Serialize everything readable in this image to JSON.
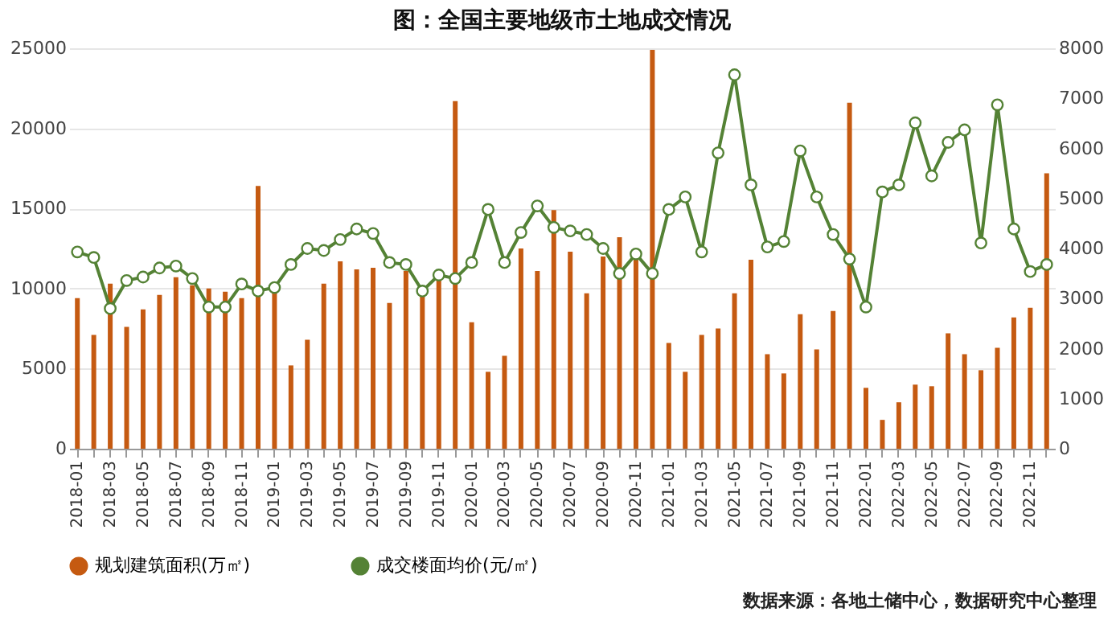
{
  "chart_data": {
    "type": "bar",
    "title": "图：全国主要地级市土地成交情况",
    "categories": [
      "2018-01",
      null,
      "2018-03",
      null,
      "2018-05",
      null,
      "2018-07",
      null,
      "2018-09",
      null,
      "2018-11",
      null,
      "2019-01",
      null,
      "2019-03",
      null,
      "2019-05",
      null,
      "2019-07",
      null,
      "2019-09",
      null,
      "2019-11",
      null,
      "2020-01",
      null,
      "2020-03",
      null,
      "2020-05",
      null,
      "2020-07",
      null,
      "2020-09",
      null,
      "2020-11",
      null,
      "2021-01",
      null,
      "2021-03",
      null,
      "2021-05",
      null,
      "2021-07",
      null,
      "2021-09",
      null,
      "2021-11",
      null,
      "2022-01",
      null,
      "2022-03",
      null,
      "2022-05",
      null,
      "2022-07",
      null,
      "2022-09",
      null,
      "2022-11",
      null
    ],
    "series": [
      {
        "name": "规划建筑面积(万㎡)",
        "color": "#c55a11",
        "values": [
          9400,
          7100,
          10300,
          7600,
          8700,
          9600,
          10700,
          10200,
          10000,
          9800,
          9400,
          16400,
          9800,
          5200,
          6800,
          10300,
          11700,
          11200,
          11300,
          9100,
          11100,
          9700,
          10500,
          21700,
          7900,
          4800,
          5800,
          12500,
          11100,
          14900,
          12300,
          9700,
          12000,
          13200,
          12000,
          24900,
          6600,
          4800,
          7100,
          7500,
          9700,
          11800,
          5900,
          4700,
          8400,
          6200,
          8600,
          21600,
          3800,
          1800,
          2900,
          4000,
          3900,
          7200,
          5900,
          4900,
          6300,
          8200,
          8800,
          17200
        ]
      },
      {
        "name": "成交楼面均价(元/㎡)",
        "type": "line",
        "axis": "y2",
        "color": "#548235",
        "marker": "circle",
        "values": [
          3930,
          3820,
          2800,
          3360,
          3430,
          3610,
          3650,
          3400,
          2830,
          2830,
          3290,
          3150,
          3220,
          3680,
          4000,
          3960,
          4180,
          4390,
          4300,
          3720,
          3680,
          3150,
          3470,
          3400,
          3720,
          4780,
          3720,
          4320,
          4850,
          4420,
          4350,
          4280,
          4000,
          3500,
          3890,
          3500,
          4780,
          5030,
          3930,
          5910,
          7470,
          5270,
          4030,
          4140,
          5950,
          5030,
          4280,
          3790,
          2830,
          5130,
          5270,
          6510,
          5450,
          6120,
          6370,
          4110,
          6870,
          4390,
          3540,
          3680
        ]
      }
    ],
    "ylim": [
      0,
      25000
    ],
    "yticks": [
      0,
      5000,
      10000,
      15000,
      20000,
      25000
    ],
    "y2lim": [
      0,
      8000
    ],
    "y2ticks": [
      0,
      1000,
      2000,
      3000,
      4000,
      5000,
      6000,
      7000,
      8000
    ],
    "grid": "y",
    "legend": "bottom",
    "annotations": [
      "数据来源：各地土储中心，数据研究中心整理"
    ]
  }
}
